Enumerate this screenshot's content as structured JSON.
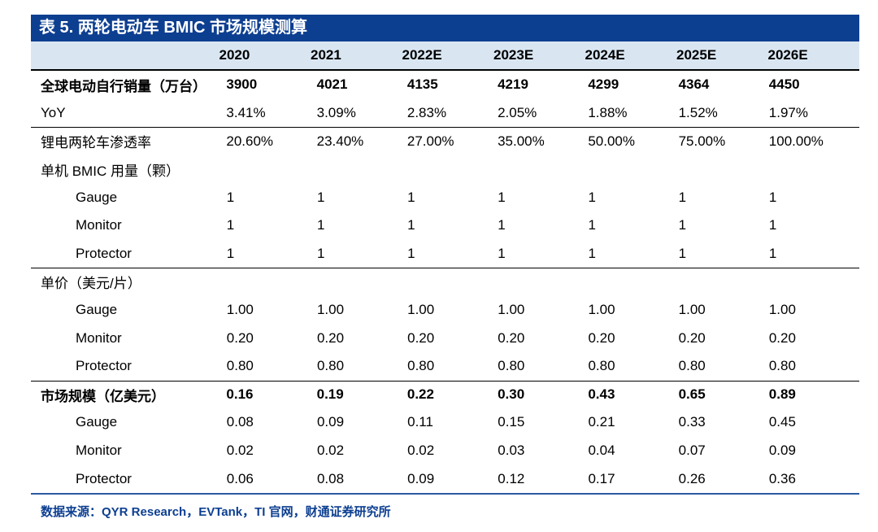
{
  "title": "表 5. 两轮电动车 BMIC 市场规模测算",
  "years": [
    "2020",
    "2021",
    "2022E",
    "2023E",
    "2024E",
    "2025E",
    "2026E"
  ],
  "rows": [
    {
      "label": "全球电动自行销量（万台）",
      "values": [
        "3900",
        "4021",
        "4135",
        "4219",
        "4299",
        "4364",
        "4450"
      ],
      "bold": true,
      "indent": false,
      "rule": false
    },
    {
      "label": "YoY",
      "values": [
        "3.41%",
        "3.09%",
        "2.83%",
        "2.05%",
        "1.88%",
        "1.52%",
        "1.97%"
      ],
      "bold": false,
      "indent": false,
      "rule": false
    },
    {
      "label": "锂电两轮车渗透率",
      "values": [
        "20.60%",
        "23.40%",
        "27.00%",
        "35.00%",
        "50.00%",
        "75.00%",
        "100.00%"
      ],
      "bold": false,
      "indent": false,
      "rule": true
    },
    {
      "label": "单机 BMIC 用量（颗）",
      "values": [
        "",
        "",
        "",
        "",
        "",
        "",
        ""
      ],
      "bold": false,
      "indent": false,
      "rule": false
    },
    {
      "label": "Gauge",
      "values": [
        "1",
        "1",
        "1",
        "1",
        "1",
        "1",
        "1"
      ],
      "bold": false,
      "indent": true,
      "rule": false
    },
    {
      "label": "Monitor",
      "values": [
        "1",
        "1",
        "1",
        "1",
        "1",
        "1",
        "1"
      ],
      "bold": false,
      "indent": true,
      "rule": false
    },
    {
      "label": "Protector",
      "values": [
        "1",
        "1",
        "1",
        "1",
        "1",
        "1",
        "1"
      ],
      "bold": false,
      "indent": true,
      "rule": false
    },
    {
      "label": "单价（美元/片）",
      "values": [
        "",
        "",
        "",
        "",
        "",
        "",
        ""
      ],
      "bold": false,
      "indent": false,
      "rule": true
    },
    {
      "label": "Gauge",
      "values": [
        "1.00",
        "1.00",
        "1.00",
        "1.00",
        "1.00",
        "1.00",
        "1.00"
      ],
      "bold": false,
      "indent": true,
      "rule": false
    },
    {
      "label": "Monitor",
      "values": [
        "0.20",
        "0.20",
        "0.20",
        "0.20",
        "0.20",
        "0.20",
        "0.20"
      ],
      "bold": false,
      "indent": true,
      "rule": false
    },
    {
      "label": "Protector",
      "values": [
        "0.80",
        "0.80",
        "0.80",
        "0.80",
        "0.80",
        "0.80",
        "0.80"
      ],
      "bold": false,
      "indent": true,
      "rule": false
    },
    {
      "label": "市场规模（亿美元）",
      "values": [
        "0.16",
        "0.19",
        "0.22",
        "0.30",
        "0.43",
        "0.65",
        "0.89"
      ],
      "bold": true,
      "indent": false,
      "rule": true
    },
    {
      "label": "Gauge",
      "values": [
        "0.08",
        "0.09",
        "0.11",
        "0.15",
        "0.21",
        "0.33",
        "0.45"
      ],
      "bold": false,
      "indent": true,
      "rule": false
    },
    {
      "label": "Monitor",
      "values": [
        "0.02",
        "0.02",
        "0.02",
        "0.03",
        "0.04",
        "0.07",
        "0.09"
      ],
      "bold": false,
      "indent": true,
      "rule": false
    },
    {
      "label": "Protector",
      "values": [
        "0.06",
        "0.08",
        "0.09",
        "0.12",
        "0.17",
        "0.26",
        "0.36"
      ],
      "bold": false,
      "indent": true,
      "rule": false
    }
  ],
  "source": "数据来源：QYR Research，EVTank，TI 官网，财通证券研究所",
  "colors": {
    "title_bg": "#0d3f91",
    "header_bg": "#d9e6f2",
    "source_text": "#0d3f91"
  }
}
